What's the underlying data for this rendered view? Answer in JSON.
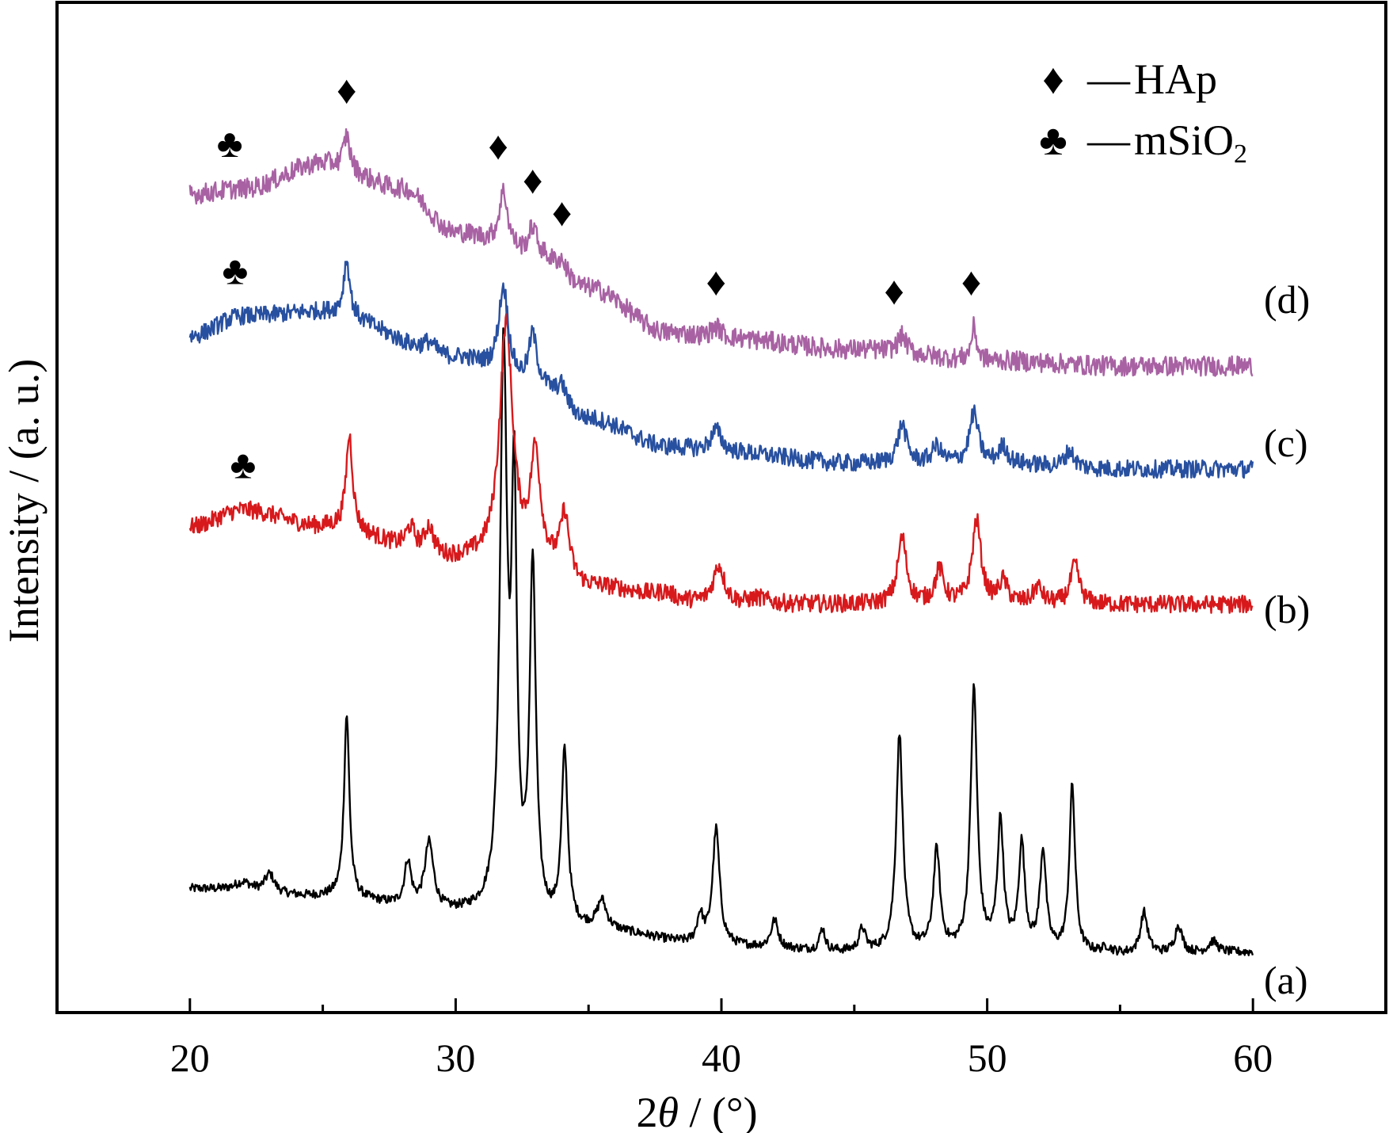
{
  "chart_data": {
    "type": "line",
    "xlabel_main": "2",
    "xlabel_italic": "θ",
    "xlabel_unit": " / (°)",
    "ylabel": "Intensity / (a. u.)",
    "xlim": [
      15,
      65
    ],
    "x_ticks": [
      20,
      30,
      40,
      50,
      60
    ],
    "x_minor_ticks": [
      25,
      35,
      45,
      55
    ],
    "y_ticks_shown": false,
    "grid": false,
    "legend": {
      "placement": "top-right",
      "entries": [
        {
          "symbol": "♦",
          "dash": "—",
          "text": "HAp",
          "sub": ""
        },
        {
          "symbol": "♣",
          "dash": "—",
          "text": "mSiO",
          "sub": "2"
        }
      ]
    },
    "series": [
      {
        "label": "(a)",
        "color": "#000000",
        "baseline": [
          [
            20,
            0.52
          ],
          [
            25,
            0.45
          ],
          [
            30,
            0.3
          ],
          [
            35,
            0.15
          ],
          [
            40,
            0.0
          ],
          [
            45,
            -0.05
          ],
          [
            50,
            -0.05
          ],
          [
            55,
            -0.07
          ],
          [
            60,
            -0.05
          ]
        ],
        "peaks": [
          [
            22.0,
            0.08,
            0.4
          ],
          [
            23.0,
            0.17,
            0.22
          ],
          [
            25.9,
            1.65,
            0.12
          ],
          [
            28.2,
            0.4,
            0.15
          ],
          [
            29.0,
            0.6,
            0.2
          ],
          [
            31.8,
            5.0,
            0.16
          ],
          [
            32.2,
            3.6,
            0.12
          ],
          [
            32.9,
            3.15,
            0.14
          ],
          [
            34.1,
            1.55,
            0.14
          ],
          [
            35.5,
            0.25,
            0.2
          ],
          [
            39.2,
            0.25,
            0.14
          ],
          [
            39.8,
            1.05,
            0.16
          ],
          [
            42.0,
            0.25,
            0.16
          ],
          [
            43.8,
            0.2,
            0.12
          ],
          [
            45.3,
            0.2,
            0.14
          ],
          [
            46.7,
            1.95,
            0.15
          ],
          [
            48.1,
            0.9,
            0.15
          ],
          [
            49.5,
            2.35,
            0.15
          ],
          [
            50.5,
            1.15,
            0.14
          ],
          [
            51.3,
            0.95,
            0.14
          ],
          [
            52.1,
            0.9,
            0.14
          ],
          [
            53.2,
            1.5,
            0.13
          ],
          [
            54.5,
            0.05,
            0.2
          ],
          [
            55.9,
            0.37,
            0.16
          ],
          [
            57.2,
            0.25,
            0.16
          ],
          [
            58.5,
            0.1,
            0.2
          ]
        ],
        "noise": 0.04
      },
      {
        "label": "(b)",
        "color": "#d7191c",
        "baseline": [
          [
            20,
            0.0
          ],
          [
            22,
            0.15
          ],
          [
            25,
            0.0
          ],
          [
            30,
            -0.3
          ],
          [
            33,
            -0.35
          ],
          [
            35,
            -0.55
          ],
          [
            40,
            -0.7
          ],
          [
            45,
            -0.7
          ],
          [
            50,
            -0.7
          ],
          [
            55,
            -0.7
          ],
          [
            60,
            -0.7
          ]
        ],
        "peaks": [
          [
            26.0,
            0.85,
            0.15
          ],
          [
            28.3,
            0.2,
            0.2
          ],
          [
            29.0,
            0.25,
            0.2
          ],
          [
            31.9,
            2.15,
            0.3
          ],
          [
            33.0,
            0.95,
            0.22
          ],
          [
            34.1,
            0.55,
            0.2
          ],
          [
            37.9,
            0.05,
            0.3
          ],
          [
            39.9,
            0.35,
            0.25
          ],
          [
            41.4,
            0.05,
            0.4
          ],
          [
            46.8,
            0.6,
            0.2
          ],
          [
            48.2,
            0.3,
            0.2
          ],
          [
            49.6,
            0.75,
            0.2
          ],
          [
            50.6,
            0.2,
            0.2
          ],
          [
            51.9,
            0.15,
            0.2
          ],
          [
            53.3,
            0.35,
            0.2
          ]
        ],
        "noise": 0.08
      },
      {
        "label": "(c)",
        "color": "#2850a0",
        "baseline": [
          [
            20,
            0.0
          ],
          [
            22,
            0.18
          ],
          [
            25,
            0.22
          ],
          [
            30,
            -0.2
          ],
          [
            33,
            -0.45
          ],
          [
            35,
            -0.75
          ],
          [
            38,
            -1.0
          ],
          [
            40,
            -1.05
          ],
          [
            45,
            -1.15
          ],
          [
            50,
            -1.15
          ],
          [
            55,
            -1.2
          ],
          [
            60,
            -1.2
          ]
        ],
        "peaks": [
          [
            25.9,
            0.5,
            0.14
          ],
          [
            29.0,
            0.1,
            0.3
          ],
          [
            31.8,
            0.8,
            0.22
          ],
          [
            32.9,
            0.45,
            0.18
          ],
          [
            34.0,
            0.15,
            0.2
          ],
          [
            39.8,
            0.2,
            0.25
          ],
          [
            46.8,
            0.35,
            0.2
          ],
          [
            48.1,
            0.15,
            0.2
          ],
          [
            49.5,
            0.45,
            0.2
          ],
          [
            50.6,
            0.15,
            0.2
          ],
          [
            53.1,
            0.15,
            0.2
          ]
        ],
        "noise": 0.08
      },
      {
        "label": "(d)",
        "color": "#a862a3",
        "baseline": [
          [
            20,
            0.0
          ],
          [
            22,
            0.05
          ],
          [
            25,
            0.28
          ],
          [
            28,
            0.05
          ],
          [
            30,
            -0.35
          ],
          [
            33,
            -0.55
          ],
          [
            35,
            -0.85
          ],
          [
            38,
            -1.25
          ],
          [
            40,
            -1.3
          ],
          [
            45,
            -1.4
          ],
          [
            50,
            -1.5
          ],
          [
            55,
            -1.55
          ],
          [
            60,
            -1.55
          ]
        ],
        "peaks": [
          [
            25.9,
            0.3,
            0.14
          ],
          [
            31.8,
            0.5,
            0.2
          ],
          [
            32.9,
            0.25,
            0.18
          ],
          [
            34.0,
            0.1,
            0.2
          ],
          [
            39.8,
            0.1,
            0.25
          ],
          [
            46.8,
            0.15,
            0.2
          ],
          [
            49.5,
            0.3,
            0.12
          ]
        ],
        "noise": 0.09
      }
    ],
    "markers": [
      {
        "symbol": "♣",
        "series": "(d)",
        "x": 21.5
      },
      {
        "symbol": "♦",
        "series": "(d)",
        "x": 25.9
      },
      {
        "symbol": "♦",
        "series": "(d)",
        "x": 31.6
      },
      {
        "symbol": "♦",
        "series": "(d)",
        "x": 32.9
      },
      {
        "symbol": "♦",
        "series": "(d)",
        "x": 34.0
      },
      {
        "symbol": "♦",
        "series": "(d)",
        "x": 39.8
      },
      {
        "symbol": "♦",
        "series": "(d)",
        "x": 46.5
      },
      {
        "symbol": "♦",
        "series": "(d)",
        "x": 49.4
      },
      {
        "symbol": "♣",
        "series": "(c)",
        "x": 21.7
      },
      {
        "symbol": "♣",
        "series": "(b)",
        "x": 22.0
      }
    ]
  }
}
